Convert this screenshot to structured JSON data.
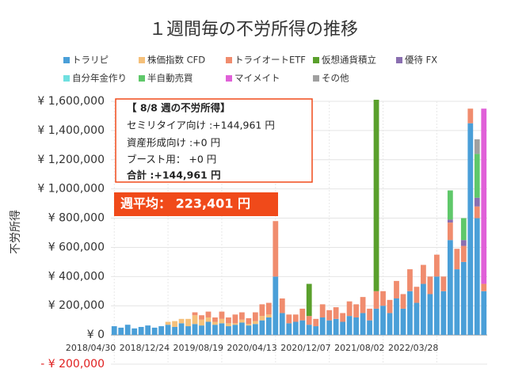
{
  "chart_data": {
    "type": "stacked-bar",
    "title": "１週間毎の不労所得の推移",
    "y_label": "不労所得",
    "annotation_lines": [
      "【 8/8 週の不労所得】",
      "セミリタイア向け :+144,961 円",
      "資産形成向け :+0 円",
      "ブースト用： +0 円",
      "合計 :+144,961 円"
    ],
    "average_label": "週平均： 223,401 円",
    "ylim": [
      -200000,
      1600000
    ],
    "yticks": [
      {
        "value": -200000,
        "label": "- ¥ 200,000"
      },
      {
        "value": 0,
        "label": "¥ 0"
      },
      {
        "value": 200000,
        "label": "¥ 200,000"
      },
      {
        "value": 400000,
        "label": "¥ 400,000"
      },
      {
        "value": 600000,
        "label": "¥ 600,000"
      },
      {
        "value": 800000,
        "label": "¥ 800,000"
      },
      {
        "value": 1000000,
        "label": "¥ 1,000,000"
      },
      {
        "value": 1200000,
        "label": "¥ 1,200,000"
      },
      {
        "value": 1400000,
        "label": "¥ 1,400,000"
      },
      {
        "value": 1600000,
        "label": "¥ 1,600,000"
      }
    ],
    "categories": [
      "2018/04/30",
      null,
      null,
      null,
      null,
      null,
      null,
      null,
      "2018/12/24",
      null,
      null,
      null,
      null,
      null,
      null,
      null,
      "2019/08/19",
      null,
      null,
      null,
      null,
      null,
      null,
      null,
      "2020/04/13",
      null,
      null,
      null,
      null,
      null,
      null,
      null,
      "2020/12/07",
      null,
      null,
      null,
      null,
      null,
      null,
      null,
      "2021/08/02",
      null,
      null,
      null,
      null,
      null,
      null,
      null,
      "2022/03/28",
      null,
      null,
      null,
      null,
      null,
      null,
      null
    ],
    "series": [
      {
        "name": "トラリピ",
        "color": "#4a9fd8",
        "values": [
          60000,
          50000,
          70000,
          45000,
          55000,
          65000,
          50000,
          60000,
          70000,
          55000,
          80000,
          60000,
          75000,
          65000,
          90000,
          70000,
          80000,
          60000,
          70000,
          85000,
          65000,
          75000,
          100000,
          120000,
          400000,
          150000,
          80000,
          90000,
          100000,
          70000,
          60000,
          120000,
          100000,
          110000,
          90000,
          130000,
          120000,
          150000,
          100000,
          180000,
          200000,
          150000,
          250000,
          180000,
          300000,
          220000,
          350000,
          280000,
          400000,
          300000,
          650000,
          450000,
          500000,
          1450000,
          800000,
          300000
        ]
      },
      {
        "name": "株価指数 CFD",
        "color": "#f5c07a",
        "values": [
          0,
          0,
          0,
          0,
          0,
          0,
          0,
          0,
          20000,
          40000,
          30000,
          50000,
          60000,
          40000,
          30000,
          20000,
          30000,
          20000,
          10000,
          20000,
          10000,
          20000,
          30000,
          20000,
          0,
          0,
          0,
          0,
          0,
          0,
          0,
          0,
          0,
          0,
          0,
          0,
          0,
          0,
          0,
          0,
          0,
          0,
          0,
          0,
          0,
          0,
          0,
          0,
          0,
          0,
          0,
          0,
          0,
          0,
          0,
          0
        ]
      },
      {
        "name": "トライオートETF",
        "color": "#f08c6e",
        "values": [
          0,
          0,
          0,
          0,
          0,
          0,
          0,
          0,
          0,
          0,
          0,
          0,
          20000,
          30000,
          40000,
          30000,
          50000,
          40000,
          60000,
          50000,
          40000,
          60000,
          80000,
          80000,
          380000,
          100000,
          60000,
          50000,
          80000,
          60000,
          50000,
          90000,
          70000,
          80000,
          60000,
          100000,
          90000,
          110000,
          80000,
          120000,
          100000,
          90000,
          120000,
          100000,
          150000,
          110000,
          130000,
          120000,
          150000,
          100000,
          120000,
          140000,
          110000,
          100000,
          80000,
          50000
        ]
      },
      {
        "name": "仮想通貨積立",
        "color": "#5aa02c",
        "values": [
          0,
          0,
          0,
          0,
          0,
          0,
          0,
          0,
          0,
          0,
          0,
          0,
          0,
          0,
          0,
          0,
          0,
          0,
          0,
          0,
          0,
          0,
          0,
          0,
          0,
          0,
          0,
          0,
          0,
          220000,
          0,
          0,
          0,
          0,
          0,
          0,
          0,
          0,
          0,
          1400000,
          0,
          0,
          0,
          0,
          0,
          0,
          0,
          0,
          0,
          0,
          0,
          0,
          0,
          0,
          0,
          0
        ]
      },
      {
        "name": "優待 FX",
        "color": "#8a6fb0",
        "values": [
          0,
          0,
          0,
          0,
          0,
          0,
          0,
          0,
          0,
          0,
          0,
          0,
          0,
          0,
          0,
          0,
          0,
          0,
          0,
          0,
          0,
          0,
          0,
          0,
          0,
          0,
          0,
          0,
          0,
          0,
          0,
          0,
          0,
          0,
          0,
          0,
          0,
          0,
          0,
          0,
          0,
          0,
          0,
          0,
          0,
          0,
          0,
          0,
          0,
          0,
          20000,
          0,
          40000,
          0,
          60000,
          0
        ]
      },
      {
        "name": "自分年金作り",
        "color": "#6fe0e0",
        "values": [
          0,
          0,
          0,
          0,
          0,
          0,
          0,
          0,
          0,
          0,
          0,
          0,
          0,
          0,
          0,
          0,
          0,
          0,
          0,
          0,
          0,
          0,
          0,
          0,
          0,
          0,
          0,
          0,
          0,
          0,
          0,
          0,
          0,
          0,
          0,
          0,
          0,
          0,
          0,
          0,
          0,
          0,
          0,
          0,
          0,
          0,
          0,
          0,
          0,
          0,
          0,
          0,
          0,
          0,
          0,
          0
        ]
      },
      {
        "name": "半自動売買",
        "color": "#5fc86a",
        "values": [
          0,
          0,
          0,
          0,
          0,
          0,
          0,
          0,
          0,
          0,
          0,
          0,
          0,
          0,
          0,
          0,
          0,
          0,
          0,
          0,
          0,
          0,
          0,
          0,
          0,
          0,
          0,
          0,
          0,
          0,
          0,
          0,
          0,
          0,
          0,
          0,
          0,
          0,
          0,
          0,
          0,
          0,
          0,
          0,
          0,
          0,
          0,
          0,
          0,
          0,
          200000,
          0,
          150000,
          0,
          300000,
          0
        ]
      },
      {
        "name": "マイメイト",
        "color": "#e060d8",
        "values": [
          0,
          0,
          0,
          0,
          0,
          0,
          0,
          0,
          0,
          0,
          0,
          0,
          0,
          0,
          0,
          0,
          0,
          0,
          0,
          0,
          0,
          0,
          0,
          0,
          0,
          0,
          0,
          0,
          0,
          0,
          0,
          0,
          0,
          0,
          0,
          0,
          0,
          0,
          0,
          0,
          0,
          0,
          0,
          0,
          0,
          0,
          0,
          0,
          0,
          0,
          0,
          0,
          0,
          0,
          0,
          1200000
        ]
      },
      {
        "name": "その他",
        "color": "#a0a0a0",
        "values": [
          0,
          0,
          0,
          0,
          0,
          0,
          0,
          0,
          0,
          0,
          0,
          0,
          0,
          0,
          0,
          0,
          0,
          0,
          0,
          0,
          0,
          0,
          0,
          0,
          0,
          0,
          0,
          0,
          0,
          0,
          0,
          0,
          0,
          0,
          0,
          0,
          0,
          0,
          0,
          0,
          0,
          0,
          0,
          0,
          0,
          0,
          0,
          0,
          0,
          0,
          0,
          0,
          0,
          0,
          100000,
          0
        ]
      }
    ]
  }
}
